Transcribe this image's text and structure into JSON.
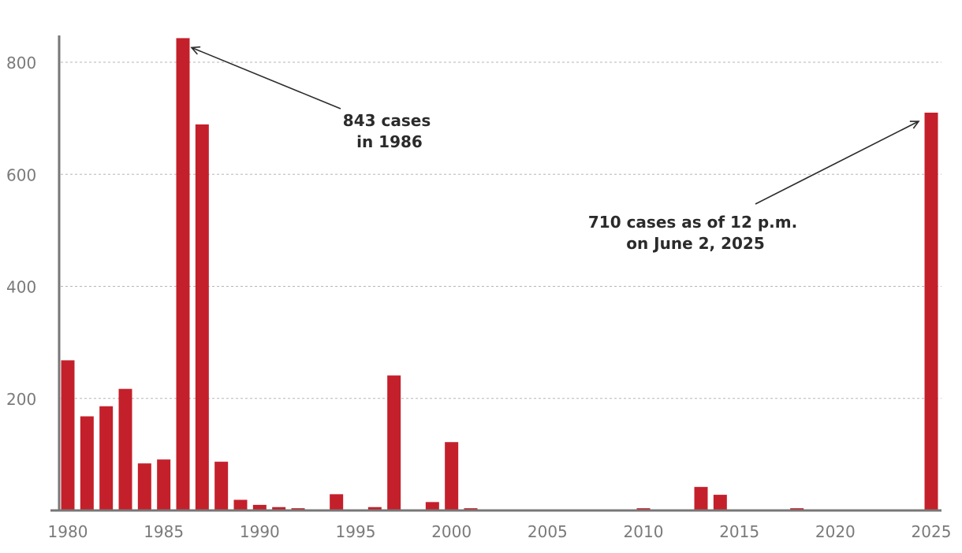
{
  "chart_data": {
    "type": "bar",
    "title": "",
    "xlabel": "",
    "ylabel": "",
    "ylim": [
      0,
      850
    ],
    "xlim": [
      1980,
      2025
    ],
    "yticks": [
      200,
      400,
      600,
      800
    ],
    "xticks": [
      1980,
      1985,
      1990,
      1995,
      2000,
      2005,
      2010,
      2015,
      2020,
      2025
    ],
    "grid": true,
    "bar_color": "#c4202b",
    "x": [
      1980,
      1981,
      1982,
      1983,
      1984,
      1985,
      1986,
      1987,
      1988,
      1989,
      1990,
      1991,
      1992,
      1993,
      1994,
      1995,
      1996,
      1997,
      1998,
      1999,
      2000,
      2001,
      2002,
      2003,
      2004,
      2005,
      2006,
      2007,
      2008,
      2009,
      2010,
      2011,
      2012,
      2013,
      2014,
      2015,
      2016,
      2017,
      2018,
      2019,
      2020,
      2021,
      2022,
      2023,
      2024,
      2025
    ],
    "values": [
      268,
      168,
      186,
      217,
      84,
      91,
      843,
      689,
      87,
      19,
      10,
      6,
      4,
      2,
      29,
      0,
      6,
      241,
      0,
      15,
      122,
      4,
      0,
      0,
      0,
      0,
      0,
      0,
      0,
      0,
      4,
      0,
      0,
      42,
      28,
      0,
      0,
      0,
      4,
      2,
      0,
      0,
      0,
      0,
      0,
      710
    ],
    "annotations": [
      {
        "id": "a1986",
        "lines": [
          "843 cases",
          "in 1986"
        ],
        "target_year": 1986,
        "target_value": 843
      },
      {
        "id": "a2025",
        "lines": [
          "710 cases as of 12 p.m.",
          "on June 2, 2025"
        ],
        "target_year": 2025,
        "target_value": 710
      }
    ]
  }
}
